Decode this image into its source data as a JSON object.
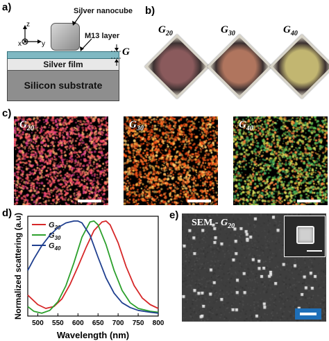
{
  "panel_a": {
    "label": "a)",
    "silver_nanocube": "Silver nanocube",
    "m13_layer": "M13 layer",
    "gap": "G",
    "silver_film": "Silver film",
    "substrate": "Silicon substrate",
    "axis_z": "z",
    "axis_x": "x",
    "axis_y": "y"
  },
  "panel_b": {
    "label": "b)",
    "samples": [
      {
        "base": "G",
        "sub": "20"
      },
      {
        "base": "G",
        "sub": "30"
      },
      {
        "base": "G",
        "sub": "40"
      }
    ],
    "colors": [
      "#8a5a5c",
      "#b0755e",
      "#c2b671"
    ]
  },
  "panel_c": {
    "label": "c)",
    "images": [
      {
        "base": "G",
        "sub": "20",
        "palette": [
          "#f04a6e",
          "#ff7a6a",
          "#d83a8a",
          "#ffb070",
          "#ff5a5a"
        ]
      },
      {
        "base": "G",
        "sub": "30",
        "palette": [
          "#ff7a30",
          "#ffb040",
          "#ff5a1a",
          "#ffd070",
          "#e04010"
        ]
      },
      {
        "base": "G",
        "sub": "40",
        "palette": [
          "#5ac050",
          "#e0c040",
          "#ff8040",
          "#40a860",
          "#d0e060"
        ]
      }
    ]
  },
  "panel_d": {
    "label": "d)",
    "chart_data": {
      "type": "line",
      "xlabel": "Wavelength (nm)",
      "ylabel": "Normalized scattering (a.u)",
      "xlim": [
        475,
        800
      ],
      "ylim": [
        0,
        1.05
      ],
      "xticks": [
        500,
        550,
        600,
        650,
        700,
        750,
        800
      ],
      "series": [
        {
          "name_base": "G",
          "name_sub": "20",
          "color": "#d62728",
          "x": [
            475,
            500,
            520,
            540,
            560,
            580,
            600,
            620,
            640,
            660,
            670,
            680,
            700,
            720,
            740,
            760,
            780,
            800
          ],
          "y": [
            0.22,
            0.12,
            0.08,
            0.1,
            0.18,
            0.33,
            0.52,
            0.72,
            0.9,
            0.99,
            1.0,
            0.96,
            0.77,
            0.52,
            0.32,
            0.19,
            0.12,
            0.08
          ]
        },
        {
          "name_base": "G",
          "name_sub": "30",
          "color": "#2ca02c",
          "x": [
            475,
            490,
            510,
            530,
            550,
            570,
            590,
            610,
            630,
            640,
            650,
            670,
            690,
            710,
            730,
            750,
            780,
            800
          ],
          "y": [
            0.1,
            0.05,
            0.03,
            0.06,
            0.15,
            0.32,
            0.56,
            0.83,
            0.99,
            1.0,
            0.96,
            0.75,
            0.48,
            0.27,
            0.14,
            0.08,
            0.05,
            0.04
          ]
        },
        {
          "name_base": "G",
          "name_sub": "40",
          "color": "#1f3f8f",
          "x": [
            475,
            490,
            510,
            530,
            550,
            570,
            590,
            600,
            610,
            630,
            650,
            670,
            690,
            710,
            730,
            750,
            780,
            800
          ],
          "y": [
            0.48,
            0.6,
            0.74,
            0.85,
            0.93,
            0.98,
            1.0,
            1.0,
            0.98,
            0.85,
            0.62,
            0.4,
            0.24,
            0.14,
            0.09,
            0.06,
            0.04,
            0.03
          ]
        }
      ]
    }
  },
  "panel_e": {
    "label": "e)",
    "title_prefix": "SEM - ",
    "title_base": "G",
    "title_sub": "20"
  }
}
